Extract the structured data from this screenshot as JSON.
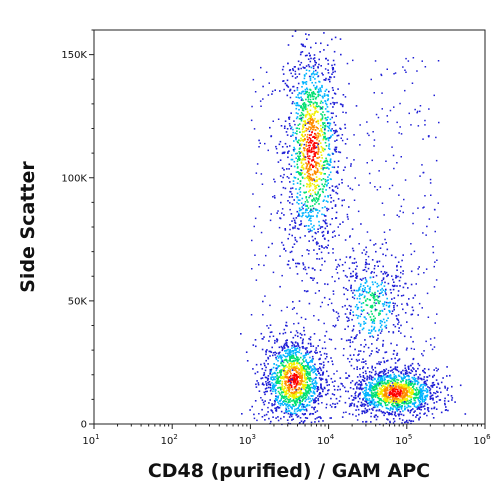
{
  "chart_data": {
    "type": "scatter",
    "style": "flow-cytometry density dot plot",
    "xlabel": "CD48 (purified) / GAM APC",
    "ylabel": "Side Scatter",
    "x_scale": "log",
    "xlim": [
      10,
      1000000
    ],
    "ylim": [
      0,
      160000
    ],
    "x_ticks": [
      {
        "value": 10,
        "base": "10",
        "exp": "1"
      },
      {
        "value": 100,
        "base": "10",
        "exp": "2"
      },
      {
        "value": 1000,
        "base": "10",
        "exp": "3"
      },
      {
        "value": 10000,
        "base": "10",
        "exp": "4"
      },
      {
        "value": 100000,
        "base": "10",
        "exp": "5"
      },
      {
        "value": 1000000,
        "base": "10",
        "exp": "6"
      }
    ],
    "y_ticks": [
      {
        "value": 0,
        "label": "0"
      },
      {
        "value": 50000,
        "label": "50K"
      },
      {
        "value": 100000,
        "label": "100K"
      },
      {
        "value": 150000,
        "label": "150K"
      }
    ],
    "populations": [
      {
        "x": 6000,
        "y": 112000,
        "x_spread_decades": 0.18,
        "y_spread": 22000,
        "peak_density": "high"
      },
      {
        "x": 3500,
        "y": 18000,
        "x_spread_decades": 0.2,
        "y_spread": 9000,
        "peak_density": "high"
      },
      {
        "x": 70000,
        "y": 13000,
        "x_spread_decades": 0.28,
        "y_spread": 5000,
        "peak_density": "high"
      },
      {
        "x": 35000,
        "y": 48000,
        "x_spread_decades": 0.25,
        "y_spread": 12000,
        "peak_density": "low"
      }
    ],
    "density_colors": [
      "#1f1fd6",
      "#00b4ff",
      "#00e070",
      "#f0f000",
      "#ff8c00",
      "#ff0000"
    ],
    "grid": false,
    "legend": "none"
  }
}
